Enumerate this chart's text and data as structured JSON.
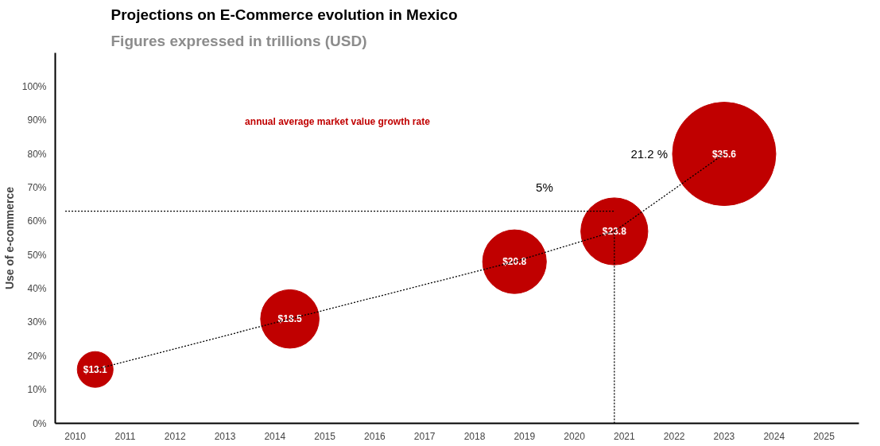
{
  "chart_data": {
    "type": "bubble",
    "title": "Projections on E-Commerce evolution in Mexico",
    "subtitle": "Figures expressed in trillions (USD)",
    "ylabel": "Use of e-commerce",
    "annotations": [
      "annual average market value growth rate",
      "5%",
      "21.2 %",
      {
        "text": "$13.1",
        "x": 2010.4,
        "y": 16
      },
      {
        "text": "$18.5",
        "x": 2014.3,
        "y": 31
      },
      {
        "text": "$20.8",
        "x": 2018.8,
        "y": 48
      },
      {
        "text": "$23.8",
        "x": 2020.8,
        "y": 57
      },
      {
        "text": "$35.6",
        "x": 2023.0,
        "y": 80
      }
    ],
    "xlim": [
      2009.6,
      2025.7
    ],
    "xticks": [
      2010,
      2011,
      2012,
      2013,
      2014,
      2015,
      2016,
      2017,
      2018,
      2019,
      2020,
      2021,
      2022,
      2023,
      2024,
      2025
    ],
    "ylim": [
      0,
      110
    ],
    "yticks": [
      {
        "value": 0,
        "label": "0%"
      },
      {
        "value": 10,
        "label": "10%"
      },
      {
        "value": 20,
        "label": "20%"
      },
      {
        "value": 30,
        "label": "30%"
      },
      {
        "value": 40,
        "label": "40%"
      },
      {
        "value": 50,
        "label": "50%"
      },
      {
        "value": 60,
        "label": "60%"
      },
      {
        "value": 70,
        "label": "70%"
      },
      {
        "value": 80,
        "label": "80%"
      },
      {
        "value": 90,
        "label": "90%"
      },
      {
        "value": 100,
        "label": "100%"
      }
    ],
    "grid": false,
    "series": [
      {
        "color": "#c00000",
        "x": [
          2010.4,
          2014.3,
          2018.8,
          2020.8,
          2023.0
        ],
        "values": [
          16,
          31,
          48,
          57,
          80
        ],
        "sizes": [
          0.12,
          0.32,
          0.38,
          0.42,
          1
        ]
      },
      {
        "type": "line",
        "color": "#000000",
        "line_style": "dotted",
        "marker": "none",
        "x": [
          2010.4,
          2014.3,
          2018.8,
          2020.8,
          2023.0
        ],
        "values": [
          16,
          31,
          48,
          57,
          80
        ]
      },
      {
        "type": "line",
        "color": "#000000",
        "line_style": "dotted",
        "marker": "none",
        "x": [
          2009.8,
          2020.8
        ],
        "values": [
          63,
          63
        ]
      },
      {
        "type": "line",
        "color": "#000000",
        "line_style": "dotted",
        "marker": "none",
        "x": [
          2020.8,
          2020.8
        ],
        "values": [
          0,
          57
        ]
      }
    ]
  }
}
